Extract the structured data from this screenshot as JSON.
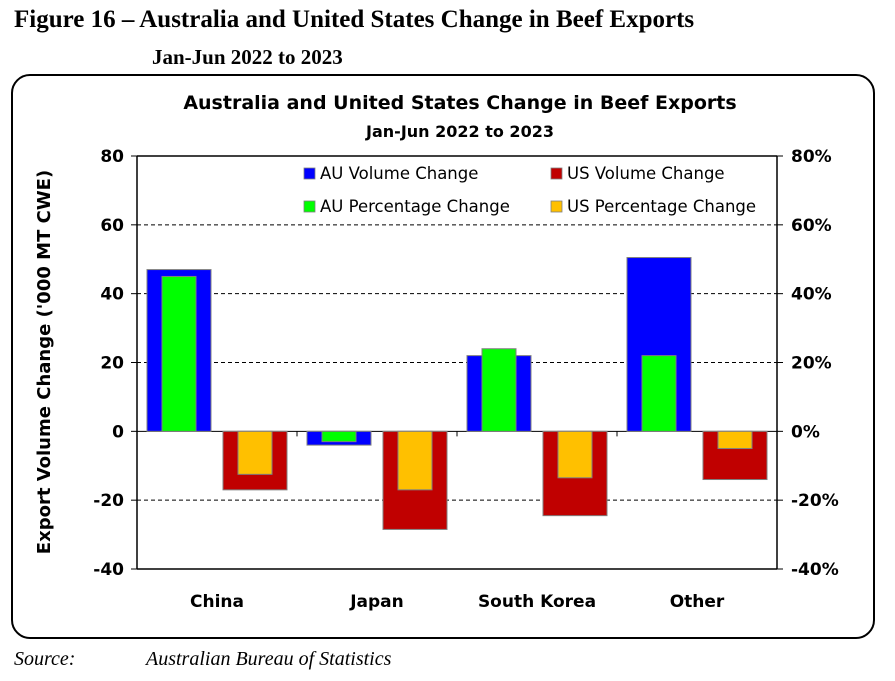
{
  "figure": {
    "title": "Figure 16 – Australia and United States Change in Beef Exports",
    "subtitle": "Jan-Jun 2022 to 2023",
    "source_label": "Source:",
    "source_text": "Australian Bureau of Statistics"
  },
  "chart_data": {
    "type": "bar",
    "title": "Australia and United States Change in Beef Exports",
    "subtitle": "Jan-Jun 2022 to 2023",
    "ylabel": "Export Volume Change ('000 MT CWE)",
    "xlabel": "",
    "categories": [
      "China",
      "Japan",
      "South Korea",
      "Other"
    ],
    "ylim": [
      -40,
      80
    ],
    "yticks": [
      -40,
      -20,
      0,
      20,
      40,
      60,
      80
    ],
    "ytick_labels": [
      "-40",
      "-20",
      "0",
      "20",
      "40",
      "60",
      "80"
    ],
    "y2lim": [
      -40,
      80
    ],
    "y2ticks": [
      -40,
      -20,
      0,
      20,
      40,
      60,
      80
    ],
    "y2tick_labels": [
      "-40%",
      "-20%",
      "0%",
      "20%",
      "40%",
      "60%",
      "80%"
    ],
    "grid": "horizontal dashed",
    "legend_position": "top",
    "series": [
      {
        "name": "AU Volume Change",
        "axis": "left",
        "color": "#0000ff",
        "values": [
          47,
          -4,
          22,
          50.5
        ]
      },
      {
        "name": "US Volume Change",
        "axis": "left",
        "color": "#c00000",
        "values": [
          -17,
          -28.5,
          -24.5,
          -14
        ]
      },
      {
        "name": "AU Percentage Change",
        "axis": "right",
        "color": "#00ff00",
        "values": [
          45,
          -3,
          24,
          22
        ]
      },
      {
        "name": "US Percentage Change",
        "axis": "right",
        "color": "#ffc000",
        "values": [
          -12.5,
          -17,
          -13.5,
          -5
        ]
      }
    ]
  }
}
